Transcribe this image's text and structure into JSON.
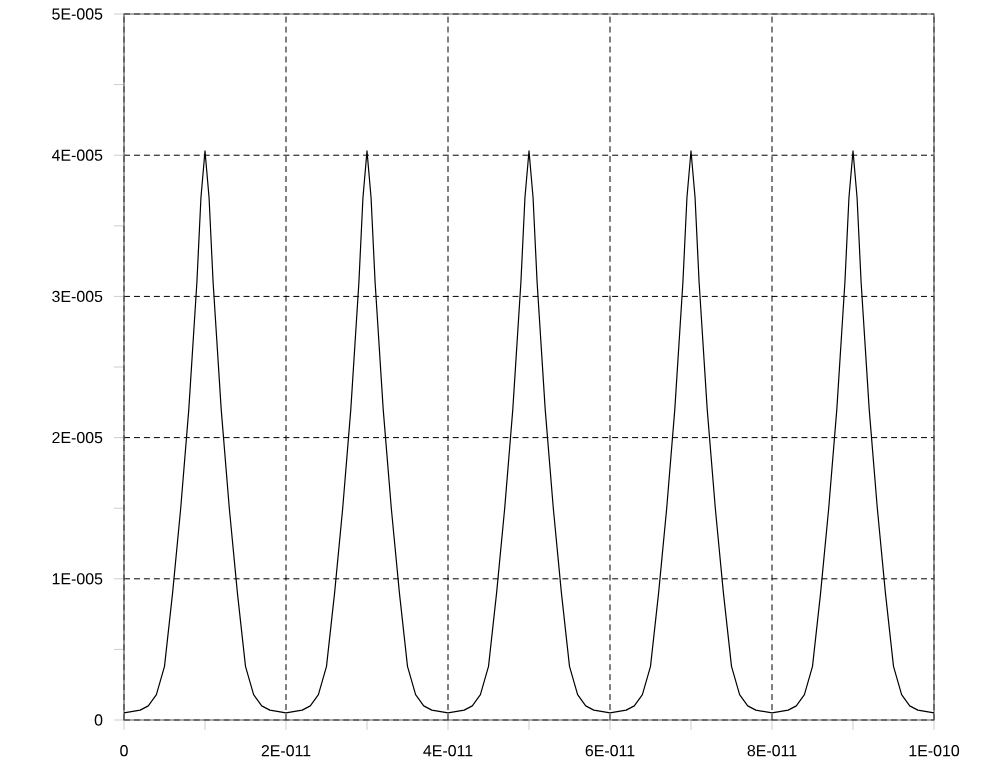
{
  "chart_data": {
    "type": "line",
    "x": [
      0,
      2e-12,
      3e-12,
      4e-12,
      5e-12,
      6e-12,
      7e-12,
      8e-12,
      9e-12,
      9.5e-12,
      1e-11,
      1.05e-11,
      1.1e-11,
      1.2e-11,
      1.3e-11,
      1.4e-11,
      1.5e-11,
      1.6e-11,
      1.7e-11,
      1.8e-11,
      2e-11,
      2.2e-11,
      2.3e-11,
      2.4e-11,
      2.5e-11,
      2.6e-11,
      2.7e-11,
      2.8e-11,
      2.9e-11,
      2.95e-11,
      3e-11,
      3.05e-11,
      3.1e-11,
      3.2e-11,
      3.3e-11,
      3.4e-11,
      3.5e-11,
      3.6e-11,
      3.7e-11,
      3.8e-11,
      4e-11,
      4.2e-11,
      4.3e-11,
      4.4e-11,
      4.5e-11,
      4.6e-11,
      4.7e-11,
      4.8e-11,
      4.9e-11,
      4.95e-11,
      5e-11,
      5.05e-11,
      5.1e-11,
      5.2e-11,
      5.3e-11,
      5.4e-11,
      5.5e-11,
      5.6e-11,
      5.7e-11,
      5.8e-11,
      6e-11,
      6.2e-11,
      6.3e-11,
      6.4e-11,
      6.5e-11,
      6.6e-11,
      6.7e-11,
      6.8e-11,
      6.9e-11,
      6.95e-11,
      7e-11,
      7.05e-11,
      7.1e-11,
      7.2e-11,
      7.3e-11,
      7.4e-11,
      7.5e-11,
      7.6e-11,
      7.7e-11,
      7.8e-11,
      8e-11,
      8.2e-11,
      8.3e-11,
      8.4e-11,
      8.5e-11,
      8.6e-11,
      8.7e-11,
      8.8e-11,
      8.9e-11,
      8.95e-11,
      9e-11,
      9.05e-11,
      9.1e-11,
      9.2e-11,
      9.3e-11,
      9.4e-11,
      9.5e-11,
      9.6e-11,
      9.7e-11,
      9.8e-11,
      1e-10
    ],
    "series": [
      {
        "color": "#000000",
        "values": [
          5e-07,
          7e-07,
          1e-06,
          1.8e-06,
          3.8e-06,
          9e-06,
          1.5e-05,
          2.2e-05,
          3.1e-05,
          3.7e-05,
          4.03e-05,
          3.7e-05,
          3.1e-05,
          2.2e-05,
          1.5e-05,
          9e-06,
          3.8e-06,
          1.8e-06,
          1e-06,
          7e-07,
          5e-07,
          7e-07,
          1e-06,
          1.8e-06,
          3.8e-06,
          9e-06,
          1.5e-05,
          2.2e-05,
          3.1e-05,
          3.7e-05,
          4.03e-05,
          3.7e-05,
          3.1e-05,
          2.2e-05,
          1.5e-05,
          9e-06,
          3.8e-06,
          1.8e-06,
          1e-06,
          7e-07,
          5e-07,
          7e-07,
          1e-06,
          1.8e-06,
          3.8e-06,
          9e-06,
          1.5e-05,
          2.2e-05,
          3.1e-05,
          3.7e-05,
          4.03e-05,
          3.7e-05,
          3.1e-05,
          2.2e-05,
          1.5e-05,
          9e-06,
          3.8e-06,
          1.8e-06,
          1e-06,
          7e-07,
          5e-07,
          7e-07,
          1e-06,
          1.8e-06,
          3.8e-06,
          9e-06,
          1.5e-05,
          2.2e-05,
          3.1e-05,
          3.7e-05,
          4.03e-05,
          3.7e-05,
          3.1e-05,
          2.2e-05,
          1.5e-05,
          9e-06,
          3.8e-06,
          1.8e-06,
          1e-06,
          7e-07,
          5e-07,
          7e-07,
          1e-06,
          1.8e-06,
          3.8e-06,
          9e-06,
          1.5e-05,
          2.2e-05,
          3.1e-05,
          3.7e-05,
          4.03e-05,
          3.7e-05,
          3.1e-05,
          2.2e-05,
          1.5e-05,
          9e-06,
          3.8e-06,
          1.8e-06,
          1e-06,
          7e-07,
          5e-07
        ]
      }
    ],
    "xlim": [
      0,
      1e-10
    ],
    "ylim": [
      0,
      5e-05
    ],
    "xticks": [
      0,
      {
        "value": 1e-11,
        "label": null
      },
      {
        "value": 2e-11,
        "label": "2E-011"
      },
      {
        "value": 3e-11,
        "label": null
      },
      {
        "value": 4e-11,
        "label": "4E-011"
      },
      {
        "value": 5e-11,
        "label": null
      },
      {
        "value": 6e-11,
        "label": "6E-011"
      },
      {
        "value": 7e-11,
        "label": null
      },
      {
        "value": 8e-11,
        "label": "8E-011"
      },
      {
        "value": 9e-11,
        "label": null
      },
      {
        "value": 1e-10,
        "label": "1E-010"
      }
    ],
    "yticks": [
      0,
      {
        "value": 5e-06,
        "label": null
      },
      {
        "value": 1e-05,
        "label": "1E-005"
      },
      {
        "value": 1.5e-05,
        "label": null
      },
      {
        "value": 2e-05,
        "label": "2E-005"
      },
      {
        "value": 2.5e-05,
        "label": null
      },
      {
        "value": 3e-05,
        "label": "3E-005"
      },
      {
        "value": 3.5e-05,
        "label": null
      },
      {
        "value": 4e-05,
        "label": "4E-005"
      },
      {
        "value": 4.5e-05,
        "label": null
      },
      {
        "value": 5e-05,
        "label": "5E-005"
      }
    ],
    "grid": true
  }
}
